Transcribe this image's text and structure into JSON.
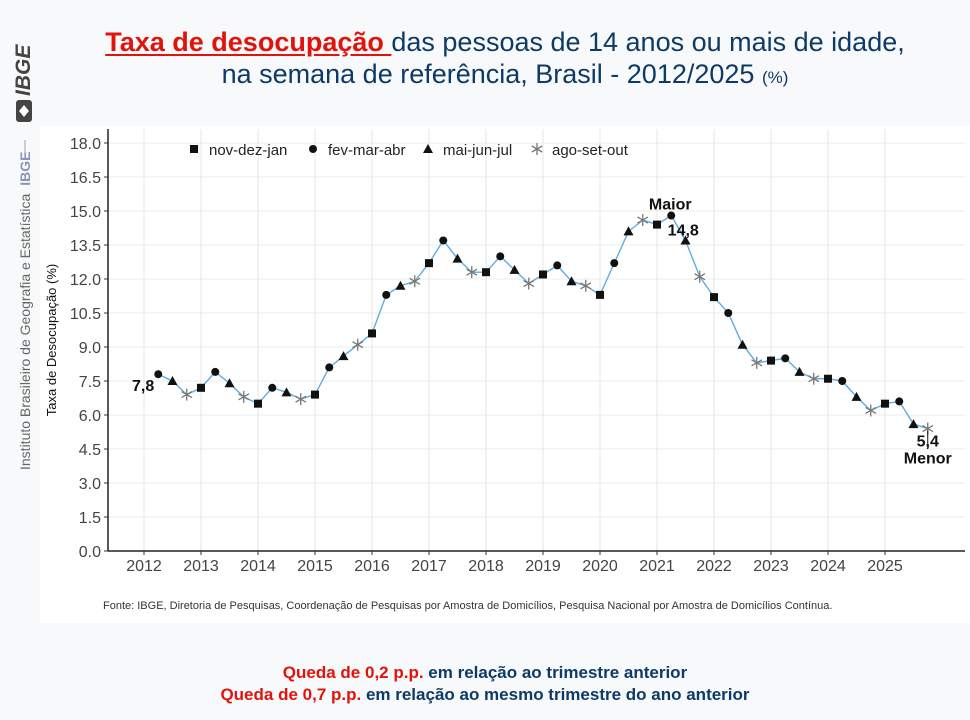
{
  "header": {
    "title_highlight": "Taxa de desocupação ",
    "title_line1_rest": "das pessoas de 14 anos ou mais de idade,",
    "title_line2": "na semana de referência, Brasil - 2012/2025 ",
    "title_unit": "(%)"
  },
  "sidebar": {
    "logo_text": "IBGE",
    "institution": "Instituto Brasileiro de Geografia e Estatística",
    "institution_short": "IBGE"
  },
  "source": "Fonte: IBGE, Diretoria de Pesquisas, Coordenação de Pesquisas por Amostra de Domicílios, Pesquisa Nacional por Amostra de Domicílios Contínua.",
  "footer": {
    "line1_highlight": "Queda de 0,2 p.p.",
    "line1_rest": " em relação ao trimestre anterior",
    "line2_highlight": "Queda de 0,7 p.p.",
    "line2_rest": " em relação ao mesmo trimestre do ano anterior"
  },
  "colors": {
    "line": "#5dade2",
    "marker": "#111111",
    "asterisk": "#777777",
    "accent_red": "#e3120b",
    "title_blue": "#0d3a66"
  },
  "chart_data": {
    "type": "line",
    "title": "Taxa de desocupação das pessoas de 14 anos ou mais de idade, na semana de referência, Brasil - 2012/2025 (%)",
    "xlabel": "",
    "ylabel": "Taxa de Desocupação (%)",
    "ylim": [
      0,
      18
    ],
    "yticks": [
      "0.0",
      "1.5",
      "3.0",
      "4.5",
      "6.0",
      "7.5",
      "9.0",
      "10.5",
      "12.0",
      "13.5",
      "15.0",
      "16.5",
      "18.0"
    ],
    "xticks": [
      "2012",
      "2013",
      "2014",
      "2015",
      "2016",
      "2017",
      "2018",
      "2019",
      "2020",
      "2021",
      "2022",
      "2023",
      "2024",
      "2025"
    ],
    "grid": true,
    "legend_position": "top",
    "legend": [
      {
        "key": "ndj",
        "label": "nov-dez-jan",
        "marker": "square"
      },
      {
        "key": "fma",
        "label": "fev-mar-abr",
        "marker": "circle"
      },
      {
        "key": "mjj",
        "label": "mai-jun-jul",
        "marker": "triangle"
      },
      {
        "key": "aso",
        "label": "ago-set-out",
        "marker": "asterisk"
      }
    ],
    "points": [
      {
        "year": 2012,
        "q": "fma",
        "value": 7.8
      },
      {
        "year": 2012,
        "q": "mjj",
        "value": 7.5
      },
      {
        "year": 2012,
        "q": "aso",
        "value": 6.9
      },
      {
        "year": 2013,
        "q": "ndj",
        "value": 7.2
      },
      {
        "year": 2013,
        "q": "fma",
        "value": 7.9
      },
      {
        "year": 2013,
        "q": "mjj",
        "value": 7.4
      },
      {
        "year": 2013,
        "q": "aso",
        "value": 6.8
      },
      {
        "year": 2014,
        "q": "ndj",
        "value": 6.5
      },
      {
        "year": 2014,
        "q": "fma",
        "value": 7.2
      },
      {
        "year": 2014,
        "q": "mjj",
        "value": 7.0
      },
      {
        "year": 2014,
        "q": "aso",
        "value": 6.7
      },
      {
        "year": 2015,
        "q": "ndj",
        "value": 6.9
      },
      {
        "year": 2015,
        "q": "fma",
        "value": 8.1
      },
      {
        "year": 2015,
        "q": "mjj",
        "value": 8.6
      },
      {
        "year": 2015,
        "q": "aso",
        "value": 9.1
      },
      {
        "year": 2016,
        "q": "ndj",
        "value": 9.6
      },
      {
        "year": 2016,
        "q": "fma",
        "value": 11.3
      },
      {
        "year": 2016,
        "q": "mjj",
        "value": 11.7
      },
      {
        "year": 2016,
        "q": "aso",
        "value": 11.9
      },
      {
        "year": 2017,
        "q": "ndj",
        "value": 12.7
      },
      {
        "year": 2017,
        "q": "fma",
        "value": 13.7
      },
      {
        "year": 2017,
        "q": "mjj",
        "value": 12.9
      },
      {
        "year": 2017,
        "q": "aso",
        "value": 12.3
      },
      {
        "year": 2018,
        "q": "ndj",
        "value": 12.3
      },
      {
        "year": 2018,
        "q": "fma",
        "value": 13.0
      },
      {
        "year": 2018,
        "q": "mjj",
        "value": 12.4
      },
      {
        "year": 2018,
        "q": "aso",
        "value": 11.8
      },
      {
        "year": 2019,
        "q": "ndj",
        "value": 12.2
      },
      {
        "year": 2019,
        "q": "fma",
        "value": 12.6
      },
      {
        "year": 2019,
        "q": "mjj",
        "value": 11.9
      },
      {
        "year": 2019,
        "q": "aso",
        "value": 11.7
      },
      {
        "year": 2020,
        "q": "ndj",
        "value": 11.3
      },
      {
        "year": 2020,
        "q": "fma",
        "value": 12.7
      },
      {
        "year": 2020,
        "q": "mjj",
        "value": 14.1
      },
      {
        "year": 2020,
        "q": "aso",
        "value": 14.6
      },
      {
        "year": 2021,
        "q": "ndj",
        "value": 14.4
      },
      {
        "year": 2021,
        "q": "fma",
        "value": 14.8
      },
      {
        "year": 2021,
        "q": "mjj",
        "value": 13.7
      },
      {
        "year": 2021,
        "q": "aso",
        "value": 12.1
      },
      {
        "year": 2022,
        "q": "ndj",
        "value": 11.2
      },
      {
        "year": 2022,
        "q": "fma",
        "value": 10.5
      },
      {
        "year": 2022,
        "q": "mjj",
        "value": 9.1
      },
      {
        "year": 2022,
        "q": "aso",
        "value": 8.3
      },
      {
        "year": 2023,
        "q": "ndj",
        "value": 8.4
      },
      {
        "year": 2023,
        "q": "fma",
        "value": 8.5
      },
      {
        "year": 2023,
        "q": "mjj",
        "value": 7.9
      },
      {
        "year": 2023,
        "q": "aso",
        "value": 7.6
      },
      {
        "year": 2024,
        "q": "ndj",
        "value": 7.6
      },
      {
        "year": 2024,
        "q": "fma",
        "value": 7.5
      },
      {
        "year": 2024,
        "q": "mjj",
        "value": 6.8
      },
      {
        "year": 2024,
        "q": "aso",
        "value": 6.2
      },
      {
        "year": 2025,
        "q": "ndj",
        "value": 6.5
      },
      {
        "year": 2025,
        "q": "fma",
        "value": 6.6
      },
      {
        "year": 2025,
        "q": "mjj",
        "value": 5.6
      },
      {
        "year": 2025,
        "q": "aso",
        "value": 5.4
      }
    ],
    "annotations": [
      {
        "label": "7,8",
        "point_index": 0
      },
      {
        "label": "Maior",
        "value_label": "14,8",
        "point_index": 36
      },
      {
        "label": "Menor",
        "value_label": "5,4",
        "point_index": 54
      }
    ]
  }
}
